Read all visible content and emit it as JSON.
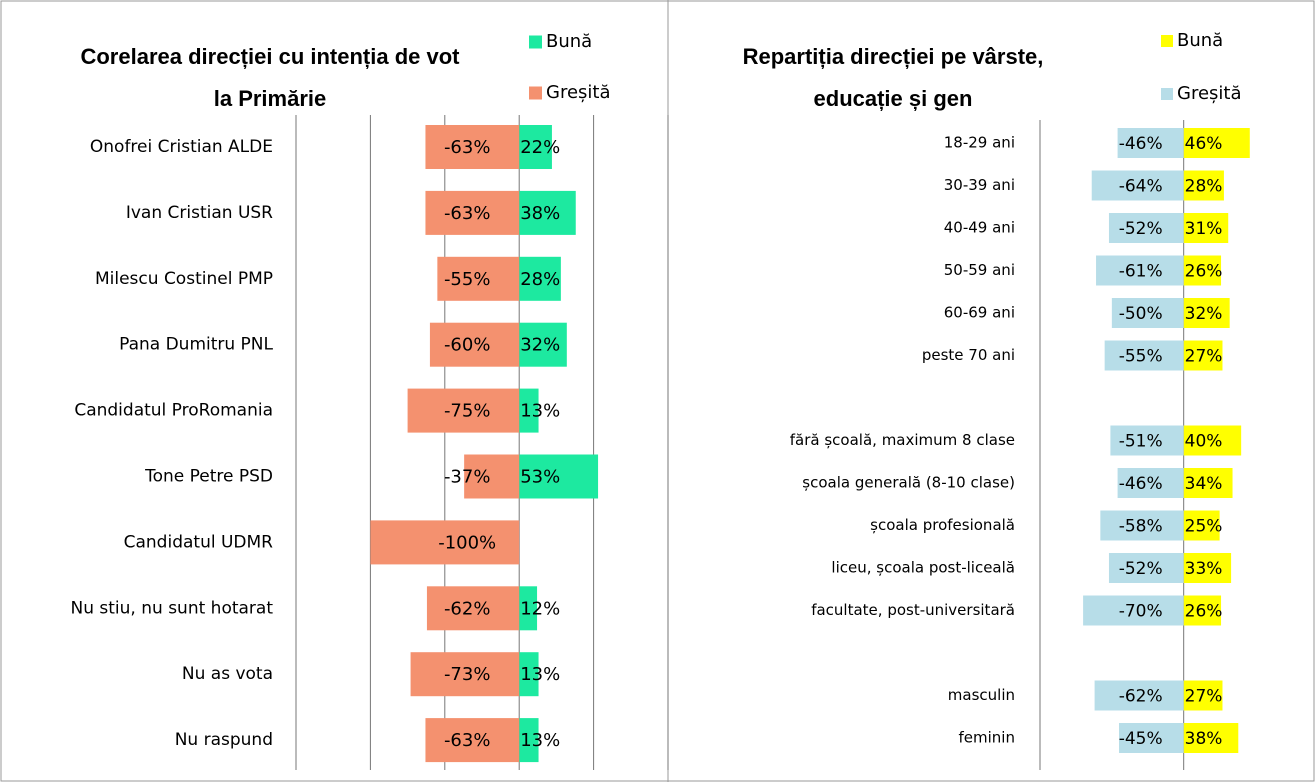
{
  "chart_data": [
    {
      "type": "bar",
      "orientation": "horizontal",
      "title": [
        "Corelarea direcției cu intenția de vot",
        "la Primărie"
      ],
      "categories": [
        "Onofrei Cristian ALDE",
        "Ivan Cristian USR",
        "Milescu Costinel PMP",
        "Pana Dumitru PNL",
        "Candidatul ProRomania",
        "Tone Petre PSD",
        "Candidatul UDMR",
        "Nu stiu, nu sunt hotarat",
        "Nu as vota",
        "Nu raspund"
      ],
      "series": [
        {
          "name": "Bună",
          "color": "#1de9a0",
          "values": [
            22,
            38,
            28,
            32,
            13,
            53,
            null,
            12,
            13,
            13
          ],
          "value_labels": [
            "22%",
            "38%",
            "28%",
            "32%",
            "13%",
            "53%",
            null,
            "12%",
            "13%",
            "13%"
          ]
        },
        {
          "name": "Greșită",
          "color": "#f4916f",
          "values": [
            -63,
            -63,
            -55,
            -60,
            -75,
            -37,
            -100,
            -62,
            -73,
            -63
          ],
          "value_labels": [
            "-63%",
            "-63%",
            "-55%",
            "-60%",
            "-75%",
            "-37%",
            "-100%",
            "-62%",
            "-73%",
            "-63%"
          ]
        }
      ],
      "xlim": [
        -150,
        100
      ],
      "xticks": [
        -150,
        -100,
        -50,
        0,
        50,
        100
      ],
      "grid": true
    },
    {
      "type": "bar",
      "orientation": "horizontal",
      "title": [
        "Repartiția direcției pe vârste,",
        "educație și gen"
      ],
      "categories": [
        "18-29 ani",
        "30-39 ani",
        "40-49 ani",
        "50-59 ani",
        "60-69 ani",
        "peste 70 ani",
        null,
        "fără școală, maximum 8 clase",
        "școala generală (8-10 clase)",
        "școala profesională",
        "liceu, școala post-liceală",
        "facultate, post-universitară",
        null,
        "masculin",
        "feminin"
      ],
      "series": [
        {
          "name": "Bună",
          "color": "#ffff00",
          "values": [
            46,
            28,
            31,
            26,
            32,
            27,
            null,
            40,
            34,
            25,
            33,
            26,
            null,
            27,
            38
          ],
          "value_labels": [
            "46%",
            "28%",
            "31%",
            "26%",
            "32%",
            "27%",
            null,
            "40%",
            "34%",
            "25%",
            "33%",
            "26%",
            null,
            "27%",
            "38%"
          ]
        },
        {
          "name": "Greșită",
          "color": "#b7dde8",
          "values": [
            -46,
            -64,
            -52,
            -61,
            -50,
            -55,
            null,
            -51,
            -46,
            -58,
            -52,
            -70,
            null,
            -62,
            -45
          ],
          "value_labels": [
            "-46%",
            "-64%",
            "-52%",
            "-61%",
            "-50%",
            "-55%",
            null,
            "-51%",
            "-46%",
            "-58%",
            "-52%",
            "-70%",
            null,
            "-62%",
            "-45%"
          ]
        }
      ],
      "xlim": [
        -100,
        90
      ],
      "xticks": [
        -100,
        0
      ],
      "grid": true
    }
  ]
}
